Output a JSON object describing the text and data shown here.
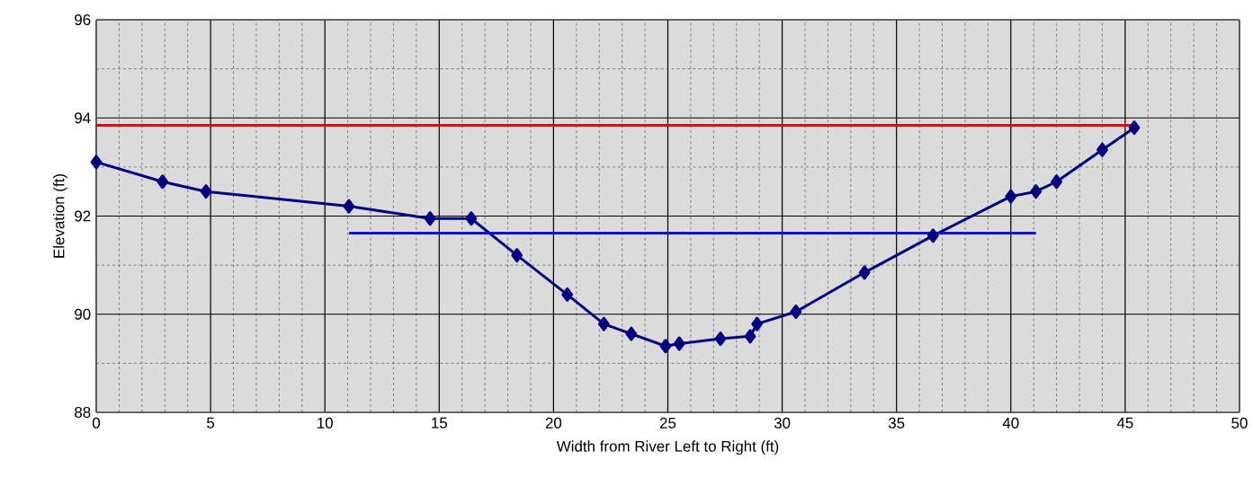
{
  "chart_data": {
    "type": "line",
    "xlabel": "Width from River Left to Right (ft)",
    "ylabel": "Elevation (ft)",
    "xlim": [
      0,
      50
    ],
    "ylim": [
      88,
      96
    ],
    "xticks": [
      0,
      5,
      10,
      15,
      20,
      25,
      30,
      35,
      40,
      45,
      50
    ],
    "yticks": [
      88,
      90,
      92,
      94,
      96
    ],
    "grid": true,
    "marker": "diamond",
    "line_style": "solid",
    "series": [
      {
        "color": "#000080",
        "x": [
          0,
          2.9,
          4.8,
          11.05,
          14.6,
          16.4,
          18.4,
          20.6,
          22.2,
          23.4,
          24.9,
          25.5,
          27.3,
          28.6,
          28.9,
          30.6,
          33.6,
          36.6,
          40.0,
          41.1,
          42.0,
          44.0,
          45.4
        ],
        "values": [
          93.1,
          92.7,
          92.5,
          92.2,
          91.95,
          91.95,
          91.2,
          90.4,
          89.8,
          89.6,
          89.35,
          89.4,
          89.5,
          89.55,
          89.8,
          90.05,
          90.85,
          91.6,
          92.4,
          92.5,
          92.7,
          93.35,
          93.8
        ]
      },
      {
        "color": "#d01010",
        "marker": "none",
        "x": [
          0,
          45.4
        ],
        "values": [
          93.85,
          93.85
        ]
      },
      {
        "color": "#1010d0",
        "marker": "none",
        "x": [
          11.05,
          41.1
        ],
        "values": [
          91.65,
          91.65
        ]
      }
    ]
  }
}
